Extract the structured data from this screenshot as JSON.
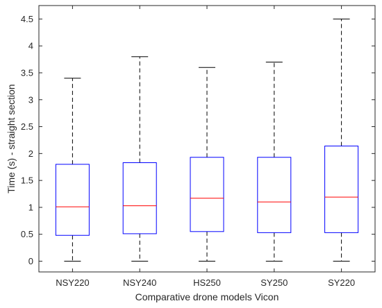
{
  "chart_data": {
    "type": "box",
    "title": "",
    "xlabel": "Comparative drone models Vicon",
    "ylabel": "Time (s) - straight section",
    "ylim": [
      -0.2,
      4.75
    ],
    "yticks": [
      0,
      0.5,
      1,
      1.5,
      2,
      2.5,
      3,
      3.5,
      4,
      4.5
    ],
    "ytick_labels": [
      "0",
      "0.5",
      "1",
      "1.5",
      "2",
      "2.5",
      "3",
      "3.5",
      "4",
      "4.5"
    ],
    "grid": false,
    "colors": {
      "box": "#0000ff",
      "median": "#ff0000",
      "whisker": "#000000",
      "axis": "#262626"
    },
    "categories": [
      "NSY220",
      "NSY240",
      "HS250",
      "SY250",
      "SY220"
    ],
    "boxes": [
      {
        "name": "NSY220",
        "whisker_low": 0,
        "q1": 0.48,
        "median": 1.01,
        "q3": 1.8,
        "whisker_high": 3.4
      },
      {
        "name": "NSY240",
        "whisker_low": 0,
        "q1": 0.51,
        "median": 1.03,
        "q3": 1.83,
        "whisker_high": 3.8
      },
      {
        "name": "HS250",
        "whisker_low": 0,
        "q1": 0.55,
        "median": 1.17,
        "q3": 1.93,
        "whisker_high": 3.6
      },
      {
        "name": "SY250",
        "whisker_low": 0,
        "q1": 0.53,
        "median": 1.1,
        "q3": 1.93,
        "whisker_high": 3.7
      },
      {
        "name": "SY220",
        "whisker_low": 0,
        "q1": 0.53,
        "median": 1.19,
        "q3": 2.14,
        "whisker_high": 4.5
      }
    ]
  }
}
